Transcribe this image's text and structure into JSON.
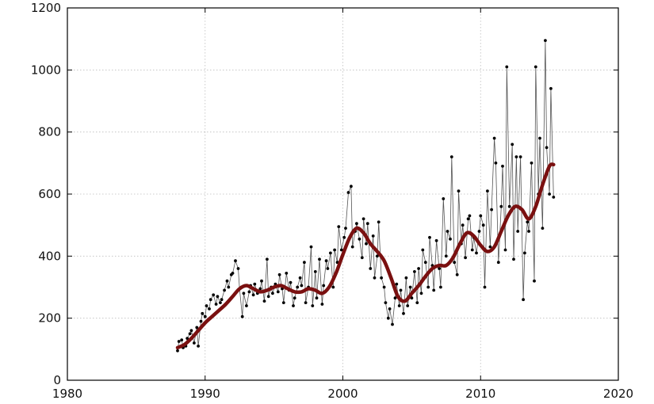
{
  "chart_data": {
    "type": "line",
    "title": "",
    "xlabel": "",
    "ylabel": "",
    "xlim": [
      1980,
      2020
    ],
    "ylim": [
      0,
      1200
    ],
    "x_ticks": [
      "1980",
      "1990",
      "2000",
      "2010",
      "2020"
    ],
    "y_ticks": [
      "0",
      "200",
      "400",
      "600",
      "800",
      "1000",
      "1200"
    ],
    "grid": true,
    "legend": "none",
    "colors": {
      "raw_line": "#555555",
      "raw_points": "#000000",
      "trend": "#7a1010"
    },
    "series": [
      {
        "kind": "raw",
        "x": [
          1988.0,
          1988.1,
          1988.3,
          1988.4,
          1988.6,
          1988.7,
          1988.9,
          1989.0,
          1989.2,
          1989.4,
          1989.5,
          1989.7,
          1989.8,
          1990.0,
          1990.1,
          1990.3,
          1990.4,
          1990.6,
          1990.8,
          1990.9,
          1991.1,
          1991.2,
          1991.4,
          1991.6,
          1991.7,
          1991.9,
          1992.0,
          1992.2,
          1992.4,
          1992.5,
          1992.7,
          1992.8,
          1993.0,
          1993.2,
          1993.3,
          1993.5,
          1993.6,
          1993.8,
          1994.0,
          1994.1,
          1994.3,
          1994.5,
          1994.6,
          1994.8,
          1994.9,
          1995.1,
          1995.3,
          1995.4,
          1995.6,
          1995.7,
          1995.9,
          1996.1,
          1996.2,
          1996.4,
          1996.5,
          1996.7,
          1996.9,
          1997.0,
          1997.2,
          1997.3,
          1997.5,
          1997.7,
          1997.8,
          1998.0,
          1998.1,
          1998.3,
          1998.5,
          1998.6,
          1998.8,
          1998.9,
          1999.1,
          1999.3,
          1999.4,
          1999.6,
          1999.7,
          1999.9,
          2000.1,
          2000.2,
          2000.4,
          2000.6,
          2000.7,
          2000.9,
          2001.0,
          2001.2,
          2001.4,
          2001.5,
          2001.7,
          2001.8,
          2002.0,
          2002.2,
          2002.3,
          2002.5,
          2002.6,
          2002.8,
          2003.0,
          2003.1,
          2003.3,
          2003.4,
          2003.6,
          2003.8,
          2003.9,
          2004.1,
          2004.2,
          2004.4,
          2004.6,
          2004.7,
          2004.9,
          2005.0,
          2005.2,
          2005.4,
          2005.5,
          2005.7,
          2005.8,
          2006.0,
          2006.2,
          2006.3,
          2006.5,
          2006.6,
          2006.8,
          2007.0,
          2007.1,
          2007.3,
          2007.5,
          2007.6,
          2007.8,
          2007.9,
          2008.1,
          2008.3,
          2008.4,
          2008.6,
          2008.7,
          2008.9,
          2009.1,
          2009.2,
          2009.4,
          2009.5,
          2009.7,
          2009.9,
          2010.0,
          2010.2,
          2010.3,
          2010.5,
          2010.7,
          2010.8,
          2011.0,
          2011.1,
          2011.3,
          2011.5,
          2011.6,
          2011.8,
          2011.9,
          2012.1,
          2012.3,
          2012.4,
          2012.6,
          2012.7,
          2012.9,
          2013.1,
          2013.2,
          2013.4,
          2013.5,
          2013.7,
          2013.9,
          2014.0,
          2014.2,
          2014.3,
          2014.5,
          2014.7,
          2014.8,
          2015.0,
          2015.1,
          2015.3
        ],
        "y": [
          95,
          125,
          130,
          105,
          110,
          135,
          150,
          160,
          120,
          170,
          110,
          190,
          215,
          205,
          240,
          230,
          260,
          275,
          245,
          270,
          250,
          260,
          290,
          320,
          300,
          340,
          345,
          385,
          360,
          295,
          205,
          280,
          240,
          285,
          305,
          275,
          310,
          280,
          295,
          320,
          255,
          390,
          270,
          300,
          280,
          310,
          285,
          340,
          295,
          250,
          345,
          290,
          315,
          240,
          265,
          300,
          330,
          305,
          380,
          250,
          300,
          430,
          240,
          350,
          265,
          390,
          245,
          305,
          385,
          360,
          410,
          300,
          420,
          380,
          495,
          420,
          460,
          490,
          605,
          625,
          430,
          480,
          505,
          455,
          395,
          520,
          440,
          505,
          360,
          465,
          330,
          400,
          510,
          330,
          300,
          250,
          200,
          230,
          180,
          265,
          310,
          240,
          290,
          215,
          330,
          240,
          300,
          265,
          350,
          250,
          360,
          280,
          420,
          380,
          300,
          460,
          370,
          290,
          450,
          360,
          300,
          585,
          400,
          480,
          455,
          720,
          380,
          340,
          610,
          440,
          500,
          395,
          520,
          530,
          420,
          460,
          410,
          480,
          530,
          500,
          300,
          610,
          430,
          550,
          780,
          700,
          380,
          560,
          690,
          420,
          1010,
          560,
          760,
          390,
          720,
          480,
          720,
          260,
          410,
          510,
          480,
          700,
          320,
          1010,
          600,
          780,
          490,
          1095,
          750,
          600,
          940,
          590
        ]
      },
      {
        "kind": "trend",
        "x": [
          1988.0,
          1988.5,
          1989.0,
          1989.5,
          1990.0,
          1990.5,
          1991.0,
          1991.5,
          1992.0,
          1992.5,
          1993.0,
          1993.5,
          1994.0,
          1994.5,
          1995.0,
          1995.5,
          1996.0,
          1996.5,
          1997.0,
          1997.5,
          1998.0,
          1998.5,
          1999.0,
          1999.5,
          2000.0,
          2000.5,
          2001.0,
          2001.5,
          2002.0,
          2002.5,
          2003.0,
          2003.5,
          2004.0,
          2004.5,
          2005.0,
          2005.5,
          2006.0,
          2006.5,
          2007.0,
          2007.5,
          2008.0,
          2008.5,
          2009.0,
          2009.5,
          2010.0,
          2010.5,
          2011.0,
          2011.5,
          2012.0,
          2012.5,
          2013.0,
          2013.5,
          2014.0,
          2014.5,
          2015.0,
          2015.3
        ],
        "y": [
          105,
          115,
          135,
          160,
          185,
          205,
          225,
          245,
          270,
          295,
          305,
          295,
          285,
          290,
          300,
          305,
          295,
          285,
          285,
          295,
          290,
          280,
          300,
          345,
          405,
          460,
          490,
          475,
          440,
          415,
          385,
          330,
          270,
          255,
          280,
          305,
          335,
          360,
          370,
          370,
          395,
          440,
          475,
          465,
          435,
          415,
          430,
          480,
          530,
          560,
          550,
          520,
          560,
          630,
          690,
          695
        ]
      }
    ]
  }
}
